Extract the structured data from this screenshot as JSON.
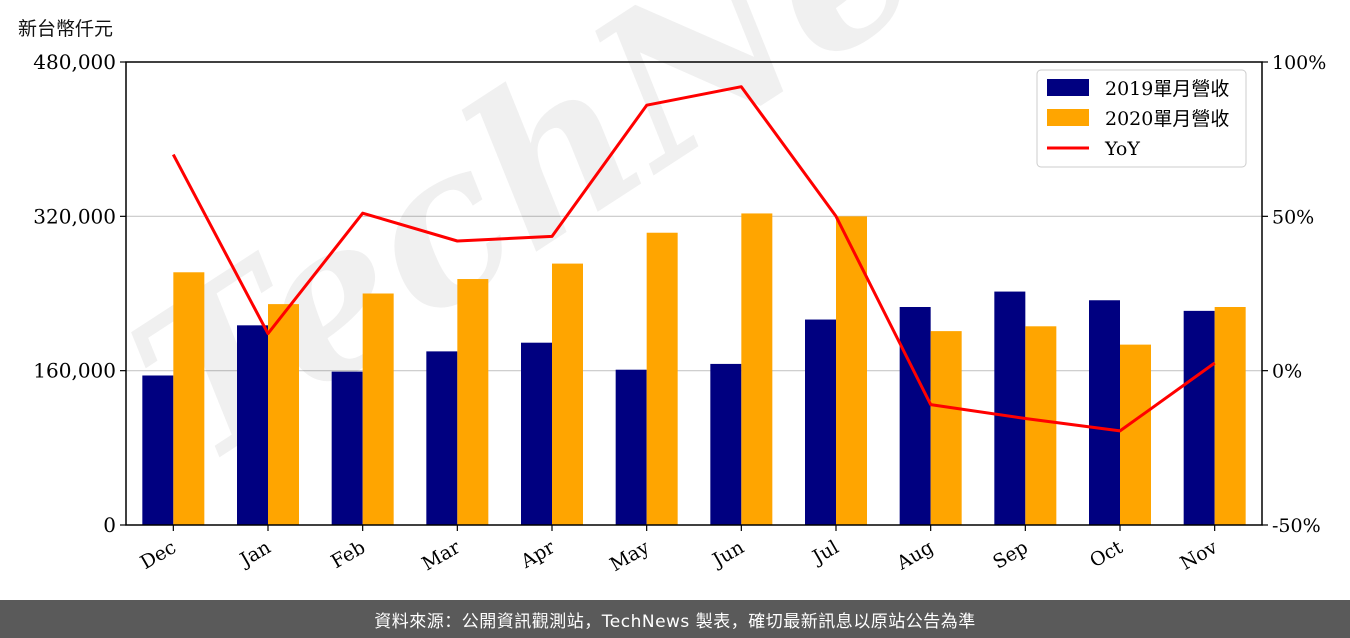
{
  "unit_label": "新台幣仟元",
  "footer": "資料來源：公開資訊觀測站，TechNews 製表，確切最新訊息以原站公告為準",
  "watermark": "TechNews",
  "chart_data": {
    "type": "bar",
    "categories": [
      "Dec",
      "Jan",
      "Feb",
      "Mar",
      "Apr",
      "May",
      "Jun",
      "Jul",
      "Aug",
      "Sep",
      "Oct",
      "Nov"
    ],
    "series": [
      {
        "name": "2019單月營收",
        "type": "bar",
        "axis": "left",
        "color": "#000080",
        "values": [
          155000,
          207000,
          159000,
          180000,
          189000,
          161000,
          167000,
          213000,
          226000,
          242000,
          233000,
          222000
        ]
      },
      {
        "name": "2020單月營收",
        "type": "bar",
        "axis": "left",
        "color": "#FFA500",
        "values": [
          262000,
          229000,
          240000,
          255000,
          271000,
          303000,
          323000,
          320000,
          201000,
          206000,
          187000,
          226000
        ]
      },
      {
        "name": "YoY",
        "type": "line",
        "axis": "right",
        "color": "#FF0000",
        "values": [
          70,
          12,
          51,
          42,
          43.5,
          86,
          92,
          50,
          -11,
          -15.5,
          -19.5,
          2.5
        ]
      }
    ],
    "y_left": {
      "min": 0,
      "max": 480000,
      "ticks": [
        0,
        160000,
        320000,
        480000
      ],
      "tick_labels": [
        "0",
        "160,000",
        "320,000",
        "480,000"
      ]
    },
    "y_right": {
      "min": -50,
      "max": 100,
      "ticks": [
        -50,
        0,
        50,
        100
      ],
      "tick_labels": [
        "-50%",
        "0%",
        "50%",
        "100%"
      ]
    },
    "grid": "horizontal",
    "legend": "top-right"
  }
}
